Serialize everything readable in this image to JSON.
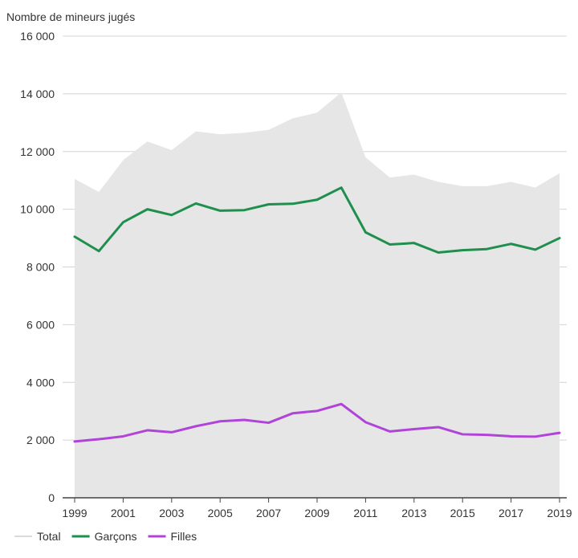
{
  "chart_data": {
    "type": "line",
    "ylabel": "Nombre de mineurs jugés",
    "ylim": [
      0,
      16000
    ],
    "y_ticks": [
      0,
      2000,
      4000,
      6000,
      8000,
      10000,
      12000,
      14000,
      16000
    ],
    "y_tick_labels": [
      "0",
      "2 000",
      "4 000",
      "6 000",
      "8 000",
      "10 000",
      "12 000",
      "14 000",
      "16 000"
    ],
    "x": [
      1999,
      2000,
      2001,
      2002,
      2003,
      2004,
      2005,
      2006,
      2007,
      2008,
      2009,
      2010,
      2011,
      2012,
      2013,
      2014,
      2015,
      2016,
      2017,
      2018,
      2019
    ],
    "x_tick_labels": [
      "1999",
      "2001",
      "2003",
      "2005",
      "2007",
      "2009",
      "2011",
      "2013",
      "2015",
      "2017",
      "2019"
    ],
    "grid": true,
    "legend_position": "bottom-left",
    "series": [
      {
        "name": "Total",
        "kind": "area",
        "color": "#e6e6e6",
        "values": [
          11050,
          10600,
          11700,
          12350,
          12050,
          12700,
          12600,
          12650,
          12750,
          13150,
          13350,
          14050,
          11800,
          11100,
          11200,
          10950,
          10800,
          10800,
          10950,
          10750,
          11250
        ]
      },
      {
        "name": "Garçons",
        "kind": "line",
        "color": "#1f8f4e",
        "values": [
          9050,
          8550,
          9550,
          10000,
          9800,
          10200,
          9950,
          9970,
          10170,
          10190,
          10330,
          10750,
          9200,
          8780,
          8830,
          8500,
          8580,
          8620,
          8800,
          8600,
          9000
        ]
      },
      {
        "name": "Filles",
        "kind": "line",
        "color": "#b044d8",
        "values": [
          1950,
          2030,
          2130,
          2340,
          2270,
          2480,
          2650,
          2700,
          2600,
          2930,
          3010,
          3250,
          2620,
          2300,
          2380,
          2450,
          2200,
          2180,
          2130,
          2120,
          2250
        ]
      }
    ]
  }
}
